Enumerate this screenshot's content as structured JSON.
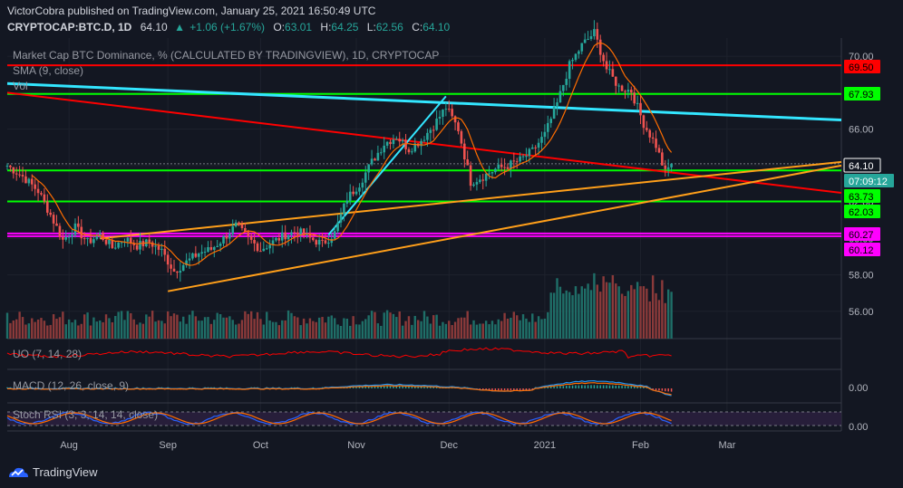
{
  "header": {
    "publish_line": "VictorCobra published on TradingView.com, January 25, 2021 16:50:49 UTC",
    "symbol": "CRYPTOCAP:BTC.D, 1D",
    "last": "64.10",
    "change": "+1.06 (+1.67%)",
    "o_label": "O:",
    "o": "63.01",
    "h_label": "H:",
    "h": "64.25",
    "l_label": "L:",
    "l": "62.56",
    "c_label": "C:",
    "c": "64.10"
  },
  "indicators": {
    "main_title": "Market Cap BTC Dominance, % (CALCULATED BY TRADINGVIEW), 1D, CRYPTOCAP",
    "sma": "SMA (9, close)",
    "vol": "Vol",
    "uo": "UO (7, 14, 28)",
    "macd": "MACD (12, 26, close, 9)",
    "stoch": "Stoch RSI (3, 3, 14, 14, close)"
  },
  "price_axis": {
    "ticks": [
      "70.00",
      "68.00",
      "66.00",
      "64.00",
      "62.00",
      "60.00",
      "58.00",
      "56.00"
    ],
    "macd_tick": "0.00",
    "stoch_tick": "0.00"
  },
  "price_tags": [
    {
      "label": "69.50",
      "bg": "#ff0000",
      "fg": "#000000"
    },
    {
      "label": "67.93",
      "bg": "#00ff00",
      "fg": "#000000"
    },
    {
      "label": "64.10",
      "bg": "#131722",
      "fg": "#ffffff"
    },
    {
      "label": "07:09:12",
      "bg": "#26a69a",
      "fg": "#ffffff"
    },
    {
      "label": "63.73",
      "bg": "#00ff00",
      "fg": "#000000"
    },
    {
      "label": "62.03",
      "bg": "#00ff00",
      "fg": "#000000"
    },
    {
      "label": "60.27",
      "bg": "#ff00ff",
      "fg": "#000000"
    },
    {
      "label": "60.12",
      "bg": "#ff00ff",
      "fg": "#000000"
    }
  ],
  "time_axis": [
    "Aug",
    "Sep",
    "Oct",
    "Nov",
    "Dec",
    "2021",
    "Feb",
    "Mar"
  ],
  "footer": {
    "brand": "TradingView"
  },
  "colors": {
    "bg": "#131722",
    "up": "#26a69a",
    "down": "#ef5350",
    "grid": "#2a2e39",
    "sma": "#ff6d00"
  },
  "chart_data": {
    "type": "candlestick",
    "title": "Market Cap BTC Dominance, % (CALCULATED BY TRADINGVIEW), 1D, CRYPTOCAP",
    "ylim": [
      54.5,
      71
    ],
    "x_labels": [
      "Aug",
      "Sep",
      "Oct",
      "Nov",
      "Dec",
      "2021",
      "Feb",
      "Mar"
    ],
    "close_path": [
      [
        0,
        64.0
      ],
      [
        5,
        63.4
      ],
      [
        10,
        62.6
      ],
      [
        14,
        61.3
      ],
      [
        18,
        59.9
      ],
      [
        22,
        60.6
      ],
      [
        26,
        59.8
      ],
      [
        30,
        60.2
      ],
      [
        34,
        59.5
      ],
      [
        38,
        60.0
      ],
      [
        42,
        59.6
      ],
      [
        46,
        59.8
      ],
      [
        50,
        59.3
      ],
      [
        54,
        58.2
      ],
      [
        58,
        58.7
      ],
      [
        62,
        59.2
      ],
      [
        66,
        59.4
      ],
      [
        70,
        60.0
      ],
      [
        74,
        60.7
      ],
      [
        78,
        60.0
      ],
      [
        82,
        59.4
      ],
      [
        86,
        59.8
      ],
      [
        90,
        60.2
      ],
      [
        94,
        60.4
      ],
      [
        98,
        60.0
      ],
      [
        102,
        59.7
      ],
      [
        106,
        60.3
      ],
      [
        110,
        62.2
      ],
      [
        114,
        63.0
      ],
      [
        118,
        64.2
      ],
      [
        122,
        65.2
      ],
      [
        126,
        65.6
      ],
      [
        130,
        64.9
      ],
      [
        134,
        65.4
      ],
      [
        138,
        66.2
      ],
      [
        142,
        67.2
      ],
      [
        146,
        66.0
      ],
      [
        150,
        63.1
      ],
      [
        154,
        63.4
      ],
      [
        158,
        63.8
      ],
      [
        162,
        64.0
      ],
      [
        166,
        64.3
      ],
      [
        170,
        64.8
      ],
      [
        174,
        65.7
      ],
      [
        178,
        67.4
      ],
      [
        182,
        69.5
      ],
      [
        186,
        70.6
      ],
      [
        190,
        71.3
      ],
      [
        194,
        69.3
      ],
      [
        198,
        68.3
      ],
      [
        202,
        68.1
      ],
      [
        206,
        66.3
      ],
      [
        210,
        65.1
      ],
      [
        213,
        63.6
      ],
      [
        215,
        64.1
      ]
    ],
    "sma_period": 9,
    "levels": [
      {
        "value": 69.5,
        "color": "#ff0000"
      },
      {
        "value": 67.93,
        "color": "#00ff00"
      },
      {
        "value": 63.73,
        "color": "#00ff00"
      },
      {
        "value": 62.03,
        "color": "#00ff00"
      },
      {
        "value": 60.27,
        "color": "#ff00ff"
      },
      {
        "value": 60.12,
        "color": "#ff00ff"
      }
    ],
    "trendlines": [
      {
        "from": [
          0,
          68.5
        ],
        "to": [
          270,
          66.5
        ],
        "color": "#33e6ff",
        "width": 3
      },
      {
        "from": [
          0,
          68.0
        ],
        "to": [
          270,
          62.5
        ],
        "color": "#ff0000",
        "width": 2
      },
      {
        "from": [
          52,
          57.1
        ],
        "to": [
          270,
          64.0
        ],
        "color": "#ff9f1a",
        "width": 2
      },
      {
        "from": [
          30,
          60.0
        ],
        "to": [
          270,
          64.2
        ],
        "color": "#ff9f1a",
        "width": 2
      },
      {
        "from": [
          104,
          60.2
        ],
        "to": [
          142,
          67.8
        ],
        "color": "#33e6ff",
        "width": 2
      }
    ],
    "volume": {
      "max_bar": 1.0
    },
    "macd_series": {
      "zero": 0.0
    },
    "stoch_series": {
      "range": [
        0,
        100
      ]
    }
  }
}
